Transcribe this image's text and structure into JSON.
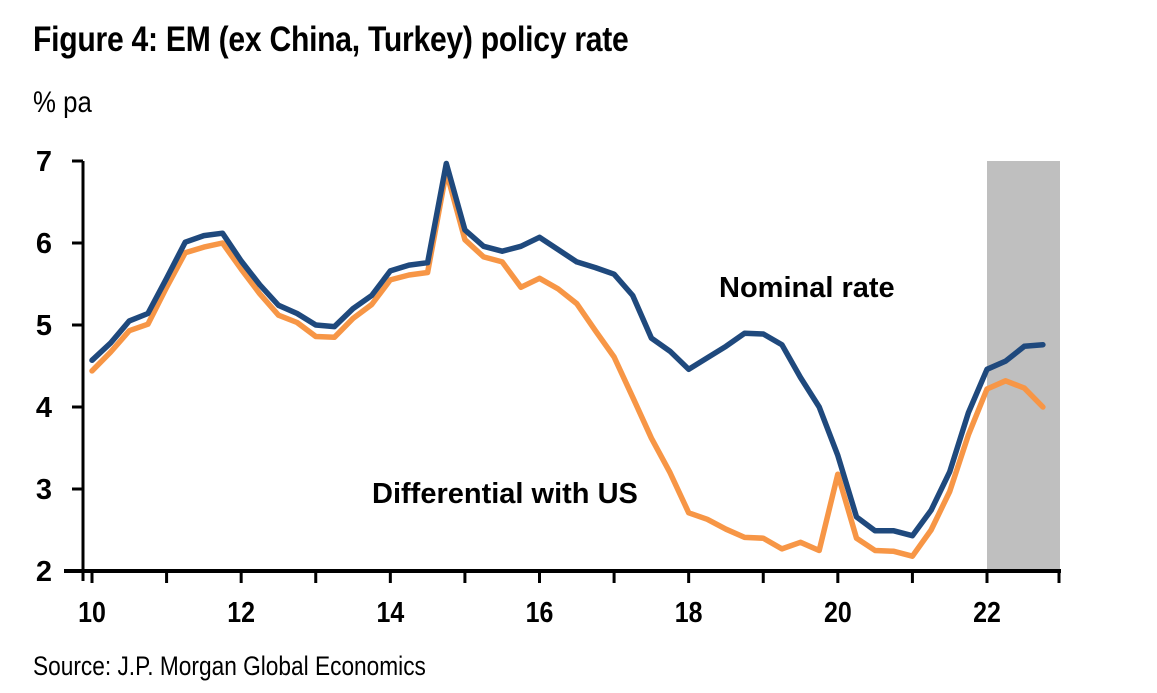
{
  "chart_data": {
    "type": "line",
    "title": "Figure 4: EM (ex China, Turkey) policy rate",
    "ylabel": "% pa",
    "xlabel": "",
    "source": "Source: J.P. Morgan Global Economics",
    "ylim": [
      2,
      7
    ],
    "xlim": [
      2010,
      2023
    ],
    "yticks": [
      2,
      3,
      4,
      5,
      6,
      7
    ],
    "ytick_labels": [
      "2",
      "3",
      "4",
      "5",
      "6",
      "7"
    ],
    "xticks": [
      2010,
      2012,
      2014,
      2016,
      2018,
      2020,
      2022
    ],
    "xtick_labels": [
      "10",
      "12",
      "14",
      "16",
      "18",
      "20",
      "22"
    ],
    "x_minor_ticks_every_years": 1,
    "grid": false,
    "legend": "none (inline annotations)",
    "frequency": "quarterly",
    "x_start": 2010.0,
    "x_step": 0.25,
    "shaded_region": {
      "from": 2022,
      "to": 2023,
      "color": "#bfbfbf",
      "meaning": "forecast period"
    },
    "series": [
      {
        "name": "Nominal rate",
        "color": "#1f497d",
        "label_position": "center-right, above line",
        "values": [
          4.57,
          4.78,
          5.05,
          5.14,
          5.57,
          6.01,
          6.09,
          6.12,
          5.78,
          5.49,
          5.24,
          5.14,
          5.0,
          4.98,
          5.2,
          5.36,
          5.66,
          5.73,
          5.76,
          6.97,
          6.16,
          5.96,
          5.9,
          5.96,
          6.07,
          5.92,
          5.77,
          5.7,
          5.62,
          5.36,
          4.84,
          4.68,
          4.46,
          4.6,
          4.74,
          4.9,
          4.89,
          4.76,
          4.36,
          4.0,
          3.41,
          2.66,
          2.49,
          2.49,
          2.43,
          2.74,
          3.21,
          3.93,
          4.46,
          4.56,
          4.74,
          4.76
        ]
      },
      {
        "name": "Differential with US",
        "color": "#f79646",
        "label_position": "center-left, below line",
        "values": [
          4.44,
          4.67,
          4.93,
          5.01,
          5.46,
          5.88,
          5.95,
          6.0,
          5.68,
          5.38,
          5.12,
          5.03,
          4.86,
          4.85,
          5.08,
          5.25,
          5.55,
          5.61,
          5.64,
          6.87,
          6.04,
          5.83,
          5.77,
          5.46,
          5.57,
          5.44,
          5.26,
          4.93,
          4.61,
          4.12,
          3.62,
          3.2,
          2.71,
          2.63,
          2.51,
          2.41,
          2.4,
          2.27,
          2.35,
          2.25,
          3.18,
          2.4,
          2.25,
          2.24,
          2.18,
          2.5,
          2.97,
          3.66,
          4.22,
          4.32,
          4.23,
          4.0
        ]
      }
    ]
  }
}
